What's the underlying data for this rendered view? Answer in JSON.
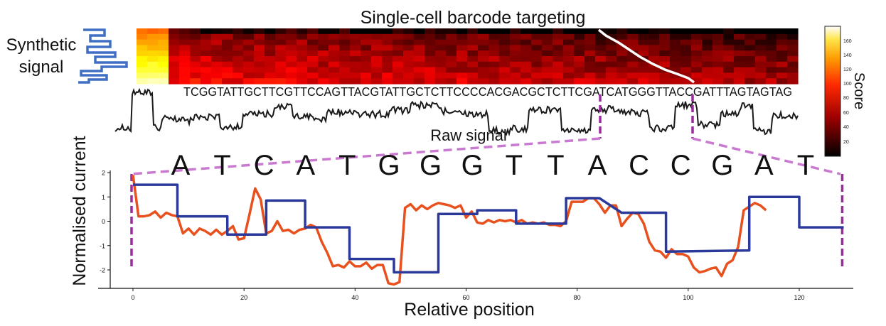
{
  "title": "Single-cell barcode targeting",
  "synthetic_label": [
    "Synthetic",
    "signal"
  ],
  "raw_signal_label": "Raw signal",
  "colorbar": {
    "label": "Score",
    "ticks": [
      "160",
      "140",
      "120",
      "100",
      "80",
      "60",
      "40",
      "20"
    ],
    "range": [
      0,
      175
    ],
    "colormap": "hot"
  },
  "full_sequence": "TCGGTATTGCTTCGTTCCAGTTACGTATTGCTCTTCCCCACGACGCTCTTCGATCATGGGTTACCGATTTAGTAGTAG",
  "zoom_bases": [
    "A",
    "T",
    "C",
    "A",
    "T",
    "G",
    "G",
    "G",
    "T",
    "T",
    "A",
    "C",
    "C",
    "G",
    "A",
    "T"
  ],
  "colors": {
    "measured": "#e8501e",
    "synthetic": "#2b3a9a",
    "zoom_lines": "#c97ad0",
    "zoom_markers": "#9b2a9e",
    "raw": "#1a1a1a",
    "alignment_path": "#ffffff",
    "synthetic_icon": "#3f6fc4"
  },
  "chart_data": {
    "type": "line",
    "xlabel": "Relative position",
    "ylabel": "Normalised current",
    "xlim": [
      -5,
      128
    ],
    "ylim": [
      -2.8,
      2.1
    ],
    "x_ticks": [
      "0",
      "20",
      "40",
      "60",
      "80",
      "100",
      "120"
    ],
    "y_ticks": [
      "2",
      "1",
      "0",
      "-1",
      "-2"
    ],
    "series": [
      {
        "key": "measured",
        "x": [
          0,
          1,
          2,
          3,
          4,
          5,
          6,
          7,
          8,
          9,
          10,
          11,
          12,
          13,
          14,
          15,
          16,
          17,
          18,
          19,
          20,
          21,
          22,
          23,
          24,
          25,
          26,
          27,
          28,
          29,
          30,
          31,
          32,
          33,
          34,
          35,
          36,
          37,
          38,
          39,
          40,
          41,
          42,
          43,
          44,
          45,
          46,
          47,
          48,
          49,
          50,
          51,
          52,
          53,
          54,
          55,
          56,
          57,
          58,
          59,
          60,
          61,
          62,
          63,
          64,
          65,
          66,
          67,
          68,
          69,
          70,
          71,
          72,
          73,
          74,
          75,
          76,
          77,
          78,
          79,
          80,
          81,
          82,
          83,
          84,
          85,
          86,
          87,
          88,
          89,
          90,
          91,
          92,
          93,
          94,
          95,
          96,
          97,
          98,
          99,
          100,
          101,
          102,
          103,
          104,
          105,
          106,
          107,
          108,
          109,
          110,
          111,
          112,
          113,
          114
        ],
        "y": [
          1.9,
          0.2,
          0.2,
          0.25,
          0.4,
          0.15,
          0.35,
          0.25,
          0.2,
          -0.5,
          -0.3,
          -0.55,
          -0.3,
          -0.4,
          -0.55,
          -0.35,
          -0.55,
          -0.4,
          -0.2,
          -0.75,
          -0.7,
          0.3,
          1.35,
          0.9,
          -0.5,
          -0.4,
          0.0,
          -0.4,
          -0.35,
          -0.5,
          -0.35,
          -0.3,
          -0.15,
          -0.25,
          -0.85,
          -1.3,
          -1.85,
          -1.8,
          -1.9,
          -1.65,
          -1.85,
          -1.85,
          -1.7,
          -1.95,
          -1.8,
          -1.8,
          -2.55,
          -2.6,
          -2.5,
          0.55,
          0.7,
          0.45,
          0.65,
          0.5,
          0.65,
          0.75,
          0.7,
          0.65,
          0.55,
          0.65,
          0.15,
          0.4,
          -0.05,
          -0.1,
          0.05,
          -0.05,
          0.05,
          0.0,
          0.05,
          -0.05,
          0.05,
          -0.1,
          -0.05,
          -0.1,
          -0.05,
          -0.15,
          -0.15,
          -0.2,
          0.0,
          0.8,
          0.8,
          0.8,
          0.95,
          0.95,
          0.7,
          0.35,
          0.65,
          0.65,
          -0.2,
          0.1,
          0.35,
          0.3,
          -0.1,
          -0.85,
          -1.2,
          -1.25,
          -1.5,
          -1.15,
          -1.35,
          -1.35,
          -1.45,
          -1.9,
          -2.1,
          -2.05,
          -1.95,
          -1.9,
          -2.25,
          -1.75,
          -1.6,
          -1.05,
          0.45,
          0.6,
          0.75,
          0.65,
          0.45
        ]
      },
      {
        "key": "synthetic",
        "x": [
          0,
          8,
          8,
          17,
          17,
          24,
          24,
          31,
          31,
          39,
          39,
          47,
          47,
          55,
          55,
          62,
          62,
          69,
          69,
          78,
          78,
          84,
          84,
          88,
          88,
          96,
          96,
          111,
          111,
          120,
          120,
          128
        ],
        "y": [
          1.5,
          1.5,
          0.2,
          0.2,
          -0.55,
          -0.55,
          0.85,
          0.85,
          -0.25,
          -0.25,
          -1.55,
          -1.55,
          -2.1,
          -2.1,
          0.3,
          0.3,
          0.45,
          0.45,
          -0.1,
          -0.1,
          0.95,
          0.95,
          0.95,
          0.35,
          0.35,
          0.35,
          -1.25,
          -1.2,
          1.0,
          1.0,
          -0.25,
          -0.25
        ]
      }
    ],
    "zoom_markers_x": [
      0,
      128
    ]
  }
}
